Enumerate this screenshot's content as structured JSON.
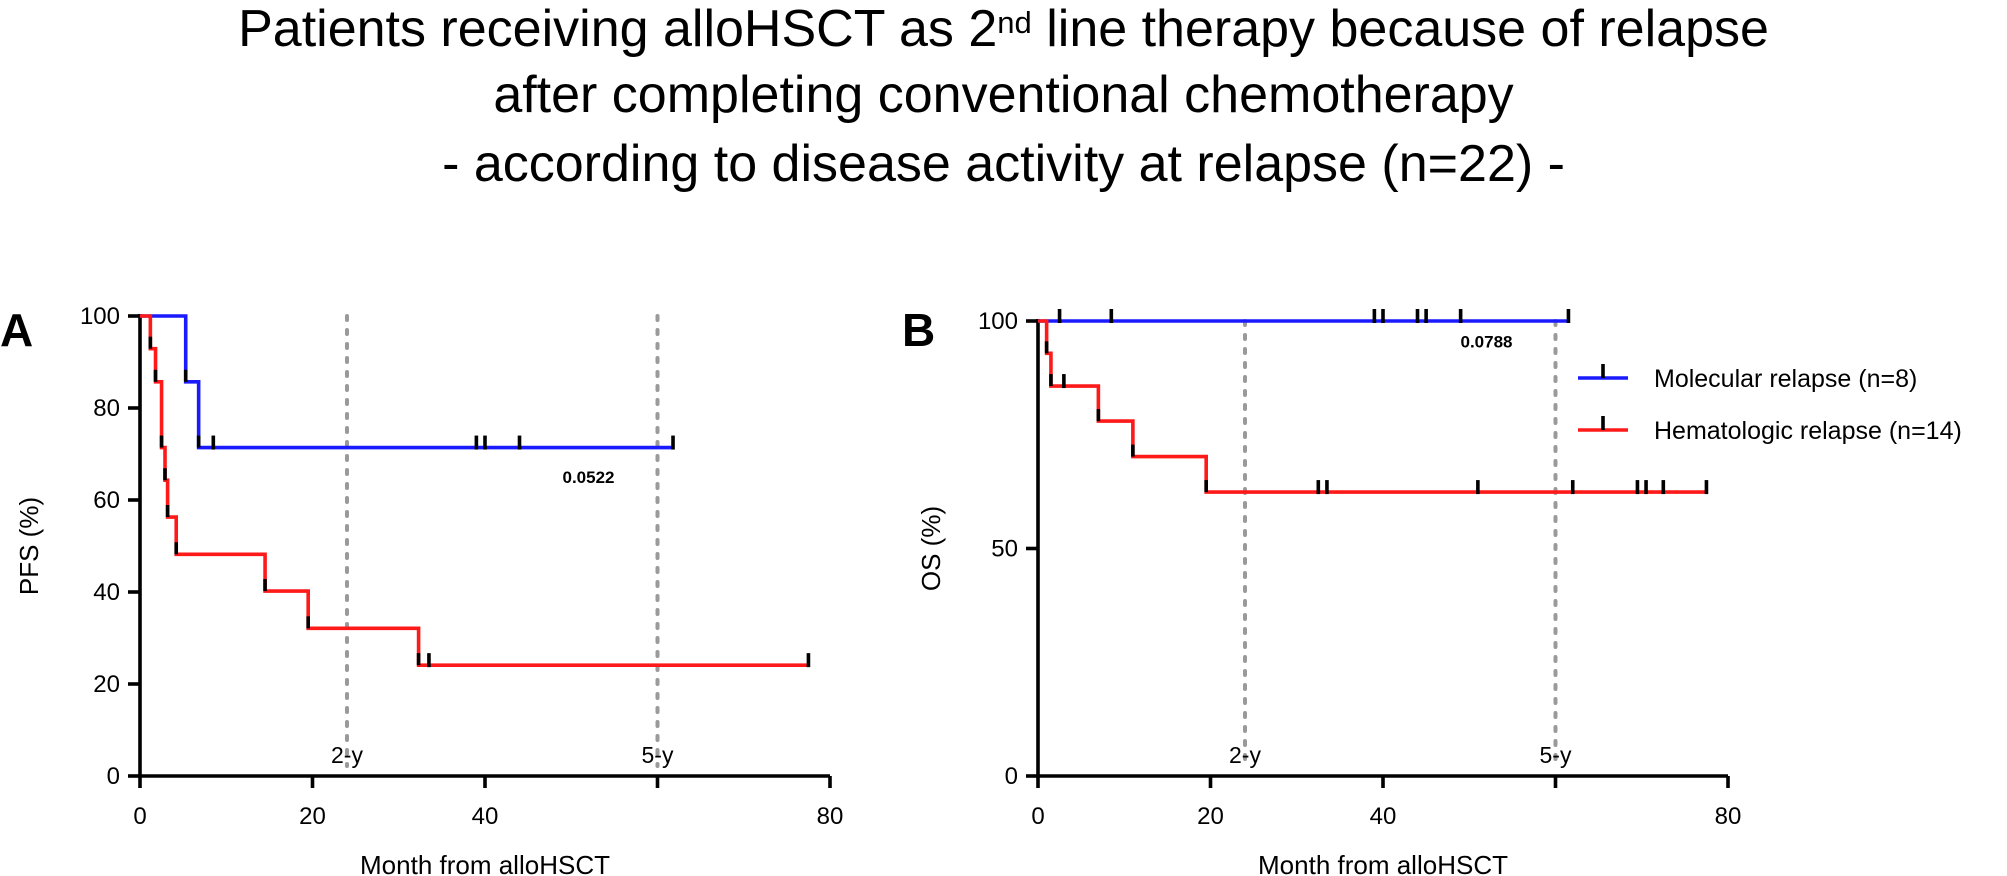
{
  "title": {
    "line1_prefix": "Patients receiving alloHSCT as 2",
    "line1_sup": "nd",
    "line1_suffix": " line therapy because of relapse",
    "line2": "after completing conventional chemotherapy",
    "line3": "- according to disease activity at relapse (n=22) -"
  },
  "colors": {
    "molecular": "#1a1aff",
    "hematologic": "#ff1a1a",
    "censor": "#000000",
    "reference_line": "#9a9a9a"
  },
  "chart_data": [
    {
      "type": "line",
      "subtype": "kaplan-meier step",
      "panel_label": "A",
      "xlabel": "Month from alloHSCT",
      "ylabel": "PFS (%)",
      "xlim": [
        0,
        80
      ],
      "ylim": [
        0,
        100
      ],
      "xticks": [
        "0",
        "20",
        "40",
        "80"
      ],
      "yticks": [
        "0",
        "20",
        "40",
        "60",
        "80",
        "100"
      ],
      "reference_lines": [
        {
          "x": 24,
          "label": "2-y"
        },
        {
          "x": 60,
          "label": "5-y"
        }
      ],
      "p_value": {
        "text": "0.0522",
        "x": 52,
        "y": 65
      },
      "series": [
        {
          "name": "Molecular relapse (n=8)",
          "color_key": "molecular",
          "steps": [
            [
              0,
              100
            ],
            [
              5.3,
              85.7
            ],
            [
              6.8,
              71.4
            ],
            [
              61.8,
              71.4
            ]
          ],
          "censored": [
            [
              8.5,
              71.4
            ],
            [
              39,
              71.4
            ],
            [
              40,
              71.4
            ],
            [
              44,
              71.4
            ],
            [
              61.8,
              71.4
            ]
          ]
        },
        {
          "name": "Hematologic relapse (n=14)",
          "color_key": "hematologic",
          "steps": [
            [
              0,
              100
            ],
            [
              1.2,
              92.9
            ],
            [
              1.8,
              85.7
            ],
            [
              2.5,
              71.4
            ],
            [
              2.9,
              64.3
            ],
            [
              3.2,
              56.3
            ],
            [
              4.2,
              48.2
            ],
            [
              14.5,
              40.2
            ],
            [
              19.5,
              32.1
            ],
            [
              32.3,
              24.1
            ],
            [
              77.5,
              24.1
            ]
          ],
          "censored": [
            [
              33.5,
              24.1
            ],
            [
              77.5,
              24.1
            ]
          ]
        }
      ]
    },
    {
      "type": "line",
      "subtype": "kaplan-meier step",
      "panel_label": "B",
      "xlabel": "Month from alloHSCT",
      "ylabel": "OS (%)",
      "xlim": [
        0,
        80
      ],
      "ylim": [
        0,
        100
      ],
      "xticks": [
        "0",
        "20",
        "40",
        "80"
      ],
      "yticks": [
        "0",
        "50",
        "100"
      ],
      "reference_lines": [
        {
          "x": 24,
          "label": "2-y"
        },
        {
          "x": 60,
          "label": "5-y"
        }
      ],
      "p_value": {
        "text": "0.0788",
        "x": 52,
        "y": 95.5
      },
      "legend": {
        "placement": "right",
        "entries": [
          "Molecular relapse (n=8)",
          "Hematologic relapse (n=14)"
        ]
      },
      "series": [
        {
          "name": "Molecular relapse (n=8)",
          "color_key": "molecular",
          "steps": [
            [
              0,
              100
            ],
            [
              61.5,
              100
            ]
          ],
          "censored": [
            [
              2.5,
              100
            ],
            [
              8.5,
              100
            ],
            [
              39,
              100
            ],
            [
              40,
              100
            ],
            [
              44,
              100
            ],
            [
              45,
              100
            ],
            [
              49,
              100
            ],
            [
              61.5,
              100
            ]
          ]
        },
        {
          "name": "Hematologic relapse (n=14)",
          "color_key": "hematologic",
          "steps": [
            [
              0,
              100
            ],
            [
              1,
              92.9
            ],
            [
              1.5,
              85.7
            ],
            [
              7,
              78
            ],
            [
              11,
              70.2
            ],
            [
              19.5,
              62.4
            ],
            [
              77.5,
              62.4
            ]
          ],
          "censored": [
            [
              3,
              85.7
            ],
            [
              32.5,
              62.4
            ],
            [
              33.5,
              62.4
            ],
            [
              51,
              62.4
            ],
            [
              62,
              62.4
            ],
            [
              69.5,
              62.4
            ],
            [
              70.5,
              62.4
            ],
            [
              72.5,
              62.4
            ],
            [
              77.5,
              62.4
            ]
          ]
        }
      ]
    }
  ]
}
